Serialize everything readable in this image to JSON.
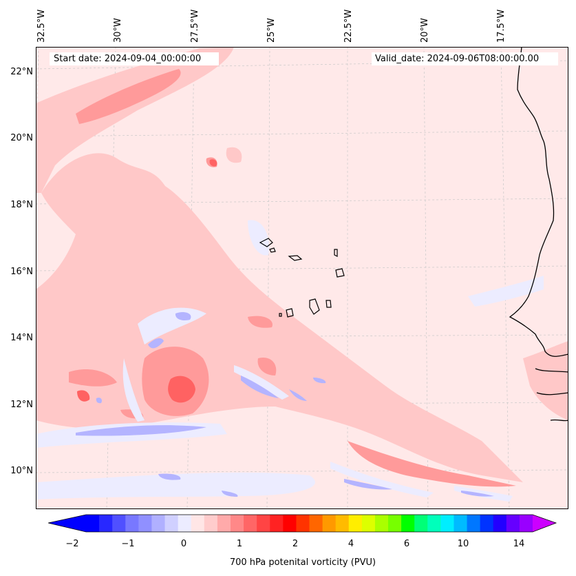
{
  "map": {
    "start_date": "Start date: 2024-09-04_00:00:00",
    "valid_date": "Valid_date: 2024-09-06T08:00:00.00",
    "lat_labels": [
      "22°N",
      "20°N",
      "18°N",
      "16°N",
      "14°N",
      "12°N",
      "10°N"
    ],
    "lon_labels": [
      "32.5°W",
      "30°W",
      "27.5°W",
      "25°W",
      "22.5°W",
      "20°W",
      "17.5°W"
    ],
    "variable": "700 hPa potential vorticity",
    "units": "PVU",
    "colors": {
      "background": "#ffe9e9",
      "light_red": "#ffc8c8",
      "mid_red": "#ff9a9a",
      "strong_red": "#ff6060",
      "light_blue": "#ececff",
      "mid_blue": "#b4b4ff",
      "coastline": "#000000"
    }
  },
  "colorbar": {
    "label": "700 hPa potenital vorticity (PVU)",
    "ticks": [
      "−2",
      "−1",
      "0",
      "1",
      "2",
      "4",
      "6",
      "10",
      "14"
    ],
    "colors": [
      "#0000ff",
      "#2828ff",
      "#5050ff",
      "#7878ff",
      "#9090ff",
      "#b0b0ff",
      "#d0d0ff",
      "#ececff",
      "#ffe6e6",
      "#ffcccc",
      "#ffaaaa",
      "#ff8888",
      "#ff6666",
      "#ff4444",
      "#ff2222",
      "#ff0000",
      "#ff3300",
      "#ff6600",
      "#ff9900",
      "#ffbb00",
      "#ffee00",
      "#ddff00",
      "#aaff00",
      "#77ff00",
      "#00ff00",
      "#00ff77",
      "#00ffbb",
      "#00eeff",
      "#00bbff",
      "#0077ff",
      "#0033ff",
      "#2200ff",
      "#6600ff",
      "#9900ff"
    ],
    "extend_min_color": "#0000ff",
    "extend_max_color": "#cc00ff"
  }
}
